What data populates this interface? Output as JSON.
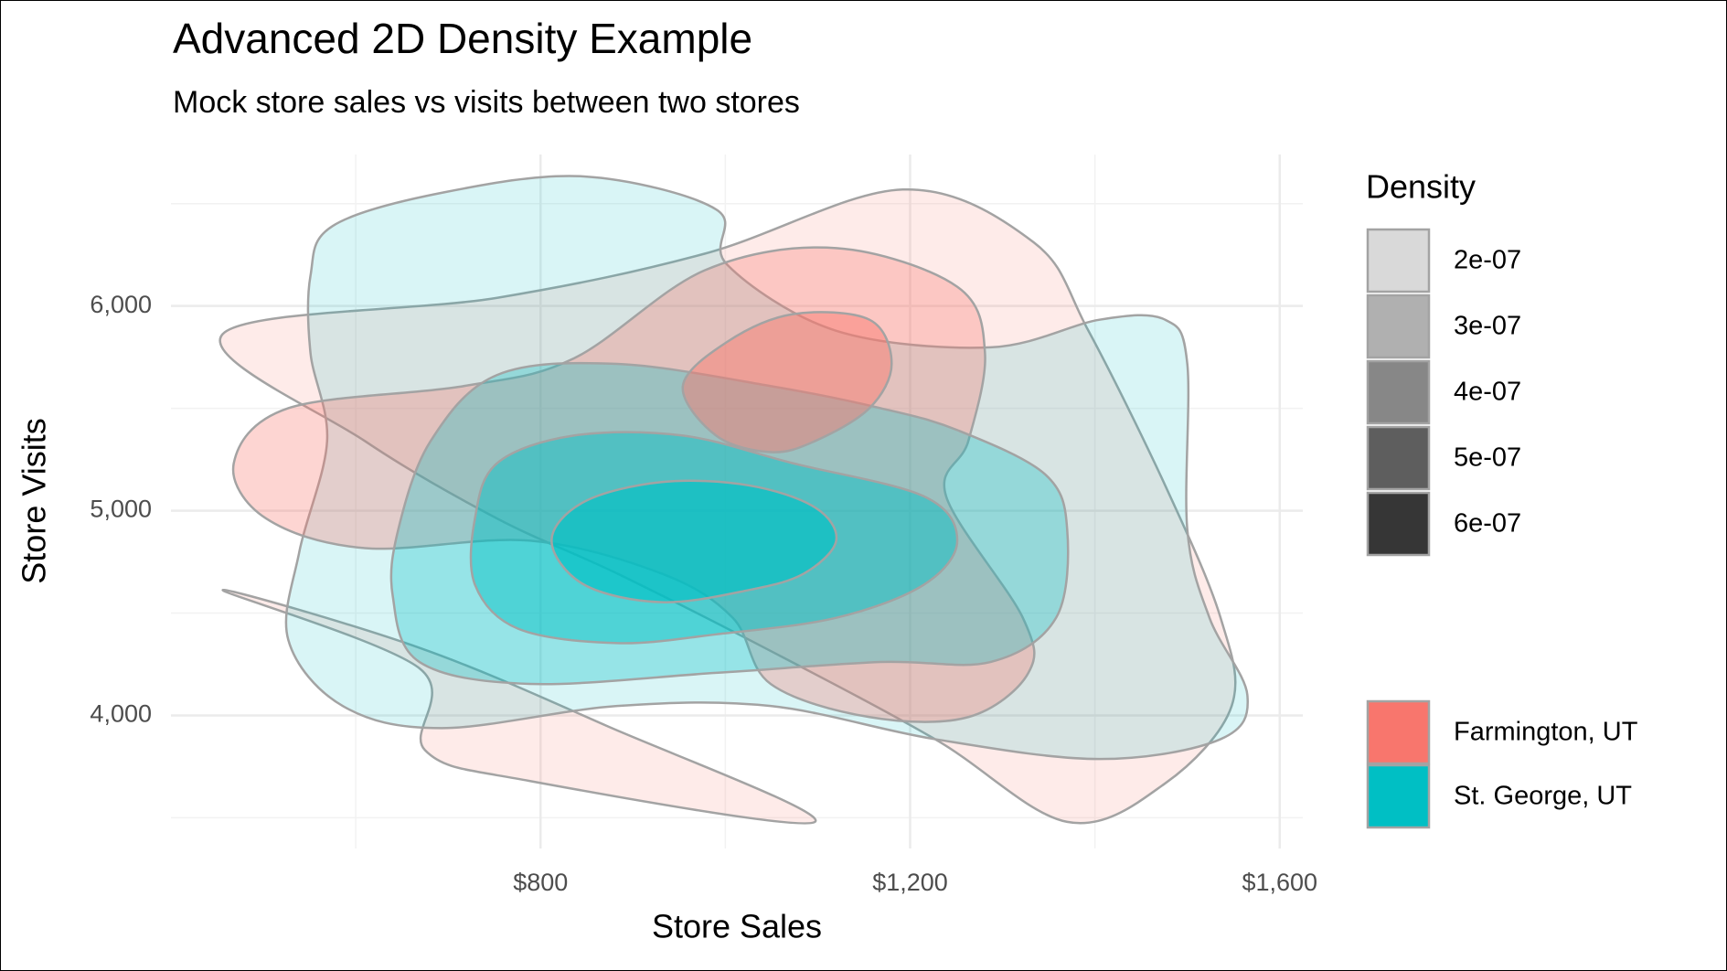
{
  "chart_data": {
    "type": "density2d",
    "title": "Advanced 2D Density Example",
    "subtitle": "Mock store sales vs visits between two stores",
    "x_label": "Store Sales",
    "y_label": "Store Visits",
    "xlim": [
      400,
      1625
    ],
    "ylim": [
      3350,
      6740
    ],
    "xticks": [
      {
        "value": 800,
        "label": "$800"
      },
      {
        "value": 1200,
        "label": "$1,200"
      },
      {
        "value": 1600,
        "label": "$1,600"
      }
    ],
    "yticks": [
      {
        "value": 4000,
        "label": "4,000"
      },
      {
        "value": 5000,
        "label": "5,000"
      },
      {
        "value": 6000,
        "label": "6,000"
      }
    ],
    "minor_xticks": [
      600,
      1000,
      1400
    ],
    "minor_yticks": [
      3500,
      4500,
      5500,
      6500
    ],
    "grid": true,
    "density_legend": {
      "title": "Density",
      "levels": [
        {
          "value": 2e-07,
          "label": "2e-07"
        },
        {
          "value": 3e-07,
          "label": "3e-07"
        },
        {
          "value": 4e-07,
          "label": "4e-07"
        },
        {
          "value": 5e-07,
          "label": "5e-07"
        },
        {
          "value": 6e-07,
          "label": "6e-07"
        }
      ]
    },
    "series": [
      {
        "name": "Farmington, UT",
        "color": "#F8766D",
        "contours": [
          {
            "level": 2e-07,
            "x": [
              456,
              753,
              978,
              1192,
              1334,
              1393,
              1476,
              1536,
              1548,
              1476,
              1370,
              1227,
              1049,
              883,
              753,
              610
            ],
            "y": [
              5863,
              6040,
              6256,
              6569,
              6310,
              5879,
              5124,
              4477,
              4046,
              3668,
              3480,
              3884,
              4315,
              4693,
              4962,
              5340
            ]
          },
          {
            "level": 2e-07,
            "x": [
              456,
              669,
              675,
              788,
              1097,
              871,
              669
            ],
            "y": [
              4612,
              4230,
              3830,
              3680,
              3480,
              3950,
              4330
            ]
          },
          {
            "level": 3e-07,
            "x": [
              468,
              527,
              717,
              836,
              978,
              1120,
              1251,
              1281,
              1263,
              1239,
              1322,
              1328,
              1263,
              1156,
              1049,
              1008,
              931,
              788,
              610,
              503
            ],
            "y": [
              5232,
              5501,
              5609,
              5744,
              6175,
              6283,
              6094,
              5771,
              5340,
              5070,
              4477,
              4208,
              3992,
              3992,
              4154,
              4477,
              4693,
              4854,
              4817,
              4962
            ]
          },
          {
            "level": 4e-07,
            "x": [
              954,
              1002,
              1073,
              1156,
              1180,
              1156,
              1097,
              1049,
              990
            ],
            "y": [
              5609,
              5825,
              5960,
              5933,
              5717,
              5501,
              5340,
              5286,
              5367
            ]
          }
        ]
      },
      {
        "name": "St. George, UT",
        "color": "#00BFC4",
        "contours": [
          {
            "level": 2e-07,
            "x": [
              551,
              575,
              693,
              847,
              990,
              1002,
              1120,
              1287,
              1405,
              1476,
              1500,
              1500,
              1524,
              1565,
              1536,
              1405,
              1227,
              1049,
              883,
              693,
              586,
              527,
              539,
              569,
              551
            ],
            "y": [
              6148,
              6391,
              6553,
              6633,
              6472,
              6202,
              5879,
              5798,
              5933,
              5933,
              5717,
              4908,
              4477,
              4100,
              3884,
              3787,
              3884,
              4046,
              4046,
              3938,
              4046,
              4369,
              4801,
              5340,
              5771
            ]
          },
          {
            "level": 3e-07,
            "x": [
              646,
              681,
              753,
              883,
              1049,
              1168,
              1251,
              1346,
              1370,
              1358,
              1287,
              1168,
              990,
              788,
              669,
              640
            ],
            "y": [
              4908,
              5340,
              5663,
              5717,
              5609,
              5501,
              5394,
              5178,
              4908,
              4477,
              4261,
              4261,
              4208,
              4154,
              4261,
              4585
            ]
          },
          {
            "level": 4e-07,
            "x": [
              729,
              753,
              836,
              954,
              1073,
              1215,
              1251,
              1215,
              1120,
              990,
              883,
              776,
              729
            ],
            "y": [
              4962,
              5232,
              5367,
              5367,
              5232,
              5070,
              4854,
              4639,
              4477,
              4396,
              4353,
              4423,
              4639
            ]
          },
          {
            "level": 5e-07,
            "x": [
              812,
              847,
              931,
              1025,
              1097,
              1120,
              1085,
              1025,
              931,
              847
            ],
            "y": [
              4854,
              5043,
              5140,
              5124,
              5016,
              4854,
              4693,
              4612,
              4553,
              4639
            ]
          }
        ]
      }
    ]
  }
}
